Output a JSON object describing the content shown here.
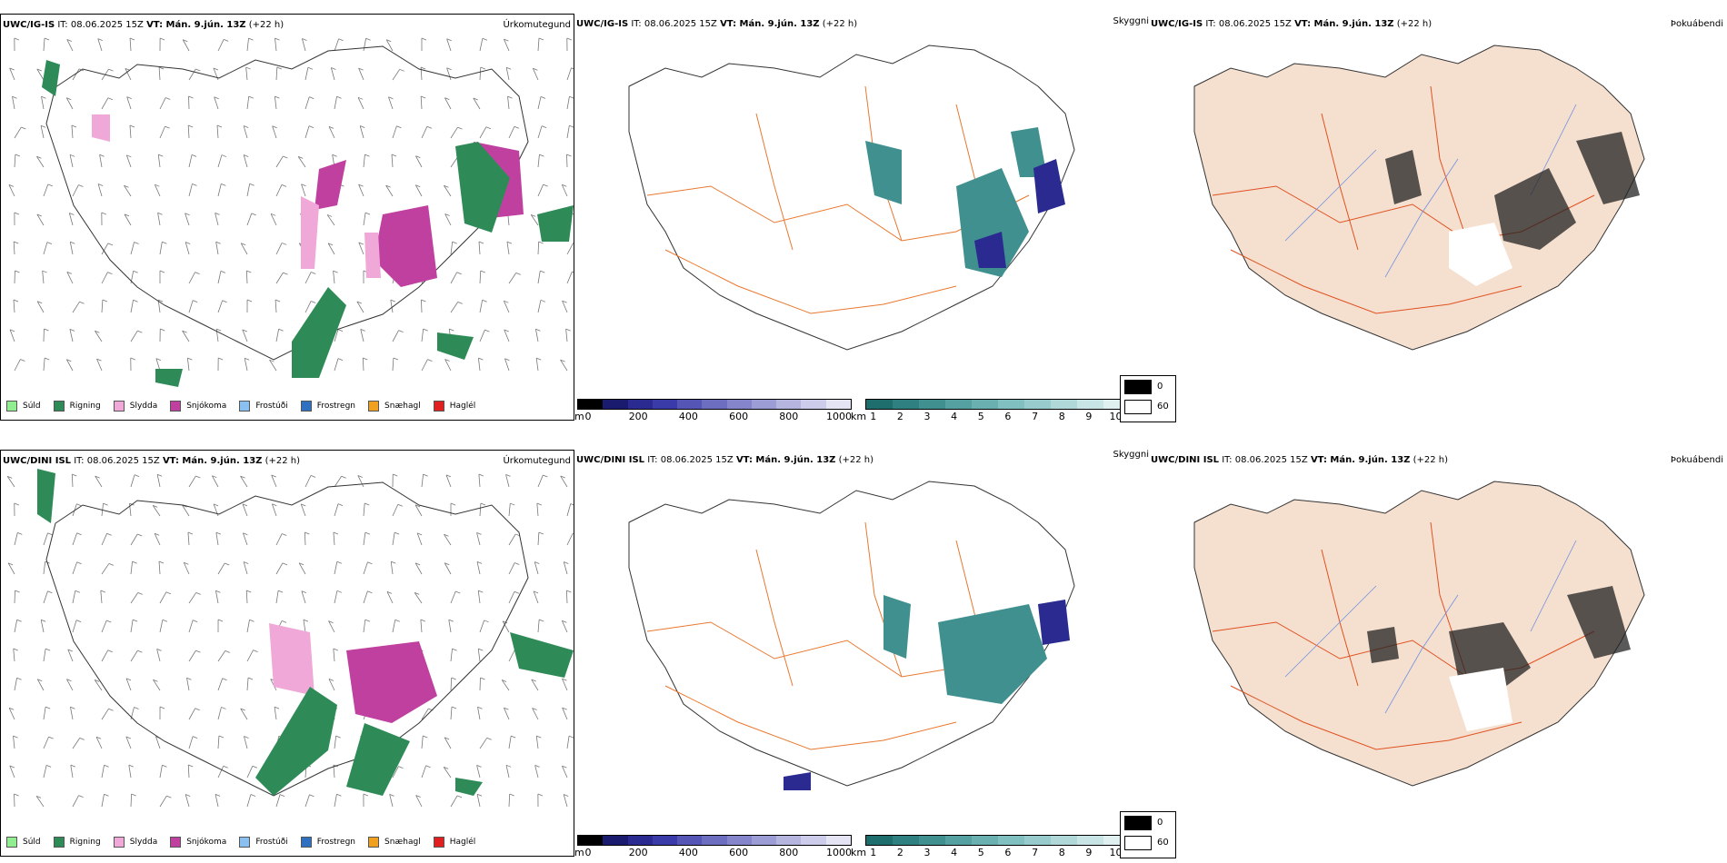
{
  "rows": [
    {
      "model": "UWC/IG-IS",
      "it_label": "IT: 08.06.2025 15Z",
      "vt_label": "VT: Mán. 9.jún. 13Z",
      "lead": "(+22 h)",
      "panel_types": [
        "Úrkomutegund",
        "Skyggni",
        "Þokuábendi"
      ]
    },
    {
      "model": "UWC/DINI ISL",
      "it_label": "IT: 08.06.2025 15Z",
      "vt_label": "VT: Mán. 9.jún. 13Z",
      "lead": "(+22 h)",
      "panel_types": [
        "Úrkomutegund",
        "Skyggni",
        "Þokuábendi"
      ]
    }
  ],
  "precip_legend": [
    {
      "label": "Súld",
      "color": "#90ee90"
    },
    {
      "label": "Rigning",
      "color": "#2e8b57"
    },
    {
      "label": "Slydda",
      "color": "#f0a8d8"
    },
    {
      "label": "Snjókoma",
      "color": "#c040a0"
    },
    {
      "label": "Frostúði",
      "color": "#8ac0f0"
    },
    {
      "label": "Frostregn",
      "color": "#3070c0"
    },
    {
      "label": "Snæhagl",
      "color": "#f0a020"
    },
    {
      "label": "Haglél",
      "color": "#e02020"
    }
  ],
  "height_bar": {
    "unit": "m",
    "ticks": [
      "0",
      "200",
      "400",
      "600",
      "800",
      "1000"
    ],
    "colors": [
      "#000000",
      "#1a1a6e",
      "#2a2a90",
      "#3a3aa8",
      "#5555b5",
      "#6e6ec0",
      "#8585cc",
      "#9d9dd6",
      "#b5b5e0",
      "#cdcdeb",
      "#e4e4f4"
    ]
  },
  "vis_bar": {
    "unit": "km",
    "ticks": [
      "1",
      "2",
      "3",
      "4",
      "5",
      "6",
      "7",
      "8",
      "9",
      "10"
    ],
    "colors": [
      "#1e6e6e",
      "#2f8080",
      "#409090",
      "#55a0a0",
      "#6ab0b0",
      "#80c0c0",
      "#98cccc",
      "#b0d8d8",
      "#c8e4e4",
      "#e0f0f0"
    ]
  },
  "fog_legend": [
    {
      "label": "0",
      "color": "#000000"
    },
    {
      "label": "60",
      "color": "#ffffff"
    }
  ],
  "colors": {
    "land_fog": "#f5e0d0",
    "roads": "#e87830",
    "rivers": "#7090e0",
    "rain": "#2e8b57",
    "snow": "#c040a0",
    "sleet": "#f0a8d8",
    "vis_teal": "#3a9a9a",
    "vis_blue": "#2a2a90"
  }
}
